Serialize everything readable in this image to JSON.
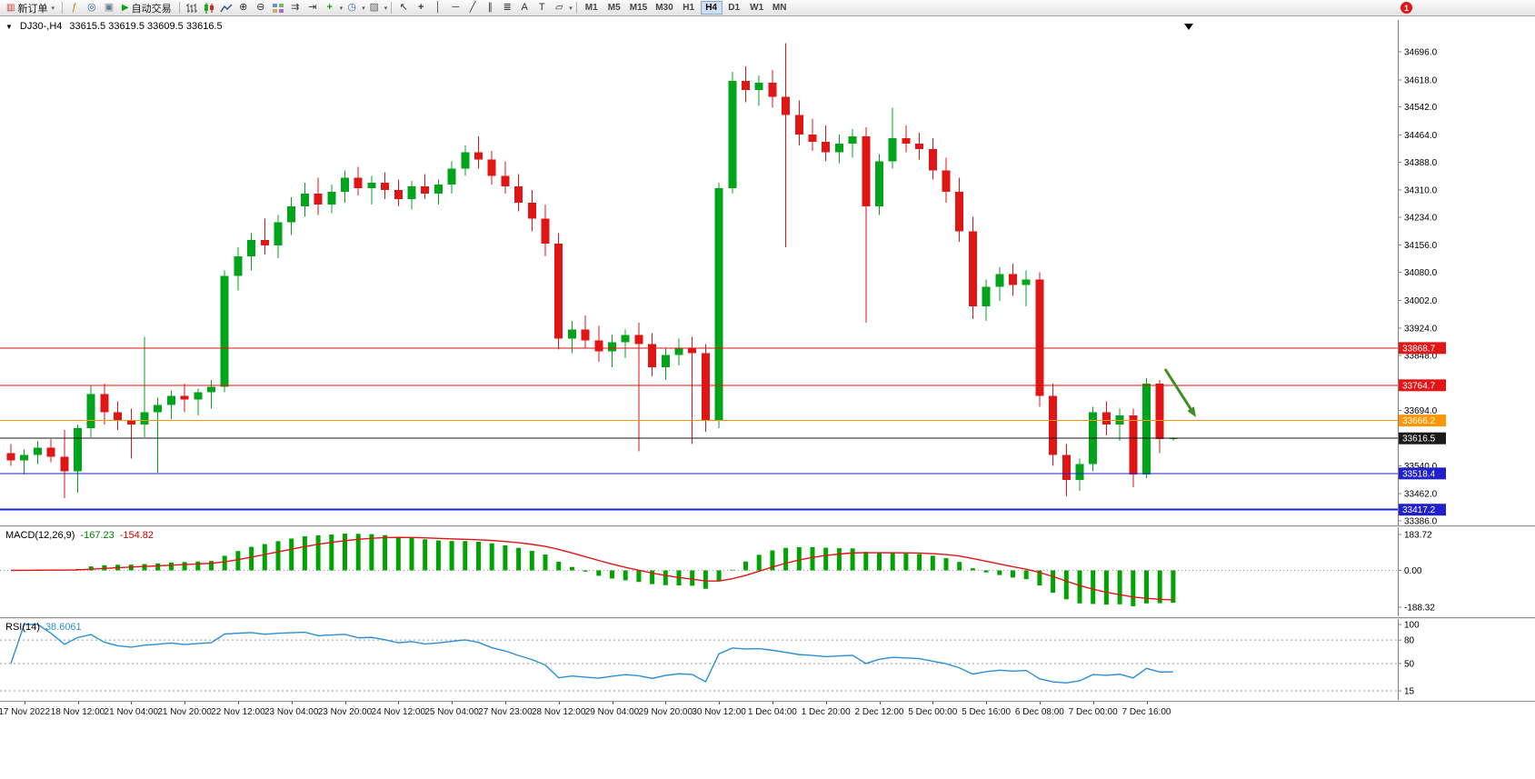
{
  "toolbar": {
    "items": [
      {
        "t": "btn",
        "name": "new-order-button",
        "icon": "new-order-icon",
        "glyph": "▥",
        "color": "#c03a2b",
        "label": "新订单",
        "dd": true
      },
      {
        "t": "sep"
      },
      {
        "t": "ico",
        "name": "indicators-icon",
        "glyph": "ƒ",
        "color": "#b8860b"
      },
      {
        "t": "ico",
        "name": "navigator-icon",
        "glyph": "◎",
        "color": "#3465a4"
      },
      {
        "t": "ico",
        "name": "terminal-icon",
        "glyph": "▣",
        "color": "#6b7b8c"
      },
      {
        "t": "btn",
        "name": "auto-trading-button",
        "icon": "play-icon",
        "glyph": "▶",
        "color": "#12a012",
        "label": "自动交易",
        "dd": false
      },
      {
        "t": "sep"
      },
      {
        "t": "svg",
        "name": "bar-chart-icon",
        "shape": "bars"
      },
      {
        "t": "svg",
        "name": "candlestick-chart-icon",
        "shape": "candles"
      },
      {
        "t": "svg",
        "name": "line-chart-icon",
        "shape": "line"
      },
      {
        "t": "ico",
        "name": "zoom-in-icon",
        "glyph": "⊕",
        "color": "#333333"
      },
      {
        "t": "ico",
        "name": "zoom-out-icon",
        "glyph": "⊖",
        "color": "#333333"
      },
      {
        "t": "svg",
        "name": "tile-windows-icon",
        "shape": "grid"
      },
      {
        "t": "ico",
        "name": "auto-scroll-icon",
        "glyph": "⇉",
        "color": "#333333"
      },
      {
        "t": "ico",
        "name": "chart-shift-icon",
        "glyph": "⇥",
        "color": "#333333"
      },
      {
        "t": "ico",
        "name": "add-indicator-icon",
        "glyph": "+",
        "color": "#12a012",
        "bold": true,
        "dd": true
      },
      {
        "t": "ico",
        "name": "period-icon",
        "glyph": "◷",
        "color": "#3465a4",
        "dd": true
      },
      {
        "t": "ico",
        "name": "templates-icon",
        "glyph": "▨",
        "color": "#666666",
        "dd": true
      },
      {
        "t": "sep"
      },
      {
        "t": "ico",
        "name": "cursor-icon",
        "glyph": "↖",
        "color": "#333333"
      },
      {
        "t": "ico",
        "name": "crosshair-icon",
        "glyph": "+",
        "color": "#333333",
        "bold": true
      },
      {
        "t": "ico",
        "name": "vertical-line-icon",
        "glyph": "│",
        "color": "#333333"
      },
      {
        "t": "ico",
        "name": "horizontal-line-icon",
        "glyph": "─",
        "color": "#333333"
      },
      {
        "t": "ico",
        "name": "trendline-icon",
        "glyph": "╱",
        "color": "#333333"
      },
      {
        "t": "ico",
        "name": "channel-icon",
        "glyph": "∥",
        "color": "#333333"
      },
      {
        "t": "ico",
        "name": "fibonacci-icon",
        "glyph": "≣",
        "color": "#333333"
      },
      {
        "t": "ico",
        "name": "text-icon",
        "glyph": "A",
        "color": "#333333"
      },
      {
        "t": "ico",
        "name": "text-label-icon",
        "glyph": "T",
        "color": "#333333"
      },
      {
        "t": "ico",
        "name": "shapes-icon",
        "glyph": "▱",
        "color": "#333333",
        "dd": true
      },
      {
        "t": "sep"
      },
      {
        "t": "tfs"
      },
      {
        "t": "spacer"
      },
      {
        "t": "badge",
        "name": "notification-badge",
        "label": "1",
        "color": "#e01616"
      }
    ],
    "timeframes": [
      "M1",
      "M5",
      "M15",
      "M30",
      "H1",
      "H4",
      "D1",
      "W1",
      "MN"
    ],
    "active_timeframe": "H4"
  },
  "chart": {
    "symbol_period": "DJ30-,H4",
    "ohlc_text": "33615.5 33619.5 33609.5 33616.5",
    "price_axis": [
      "34696.0",
      "34618.0",
      "34542.0",
      "34464.0",
      "34388.0",
      "34310.0",
      "34234.0",
      "34156.0",
      "34080.0",
      "34002.0",
      "33924.0",
      "33848.0",
      "33772.0",
      "33694.0",
      "33618.0",
      "33540.0",
      "33462.0",
      "33386.0"
    ],
    "hlines": [
      {
        "label": "33868.7",
        "price": 33868.7,
        "color": "#e01616",
        "w": 1
      },
      {
        "label": "33764.7",
        "price": 33764.7,
        "color": "#e01616",
        "w": 1
      },
      {
        "label": "33666.2",
        "price": 33666.2,
        "color": "#ff9500",
        "w": 1
      },
      {
        "label": "33616.5",
        "price": 33616.5,
        "color": "#1a1a1a",
        "w": 1
      },
      {
        "label": "33518.4",
        "price": 33518.4,
        "color": "#2020cc",
        "w": 1
      },
      {
        "label": "33417.2",
        "price": 33417.2,
        "color": "#2020cc",
        "w": 2
      }
    ],
    "annotations": [
      {
        "type": "arrow",
        "from": [
          1282,
          384
        ],
        "to": [
          1316,
          437
        ],
        "color": "#3e8e22"
      }
    ],
    "time_axis": [
      "17 Nov 2022",
      "18 Nov 12:00",
      "21 Nov 04:00",
      "21 Nov 20:00",
      "22 Nov 12:00",
      "23 Nov 04:00",
      "23 Nov 20:00",
      "24 Nov 12:00",
      "25 Nov 04:00",
      "27 Nov 23:00",
      "28 Nov 12:00",
      "29 Nov 04:00",
      "29 Nov 20:00",
      "30 Nov 12:00",
      "1 Dec 04:00",
      "1 Dec 20:00",
      "2 Dec 12:00",
      "5 Dec 00:00",
      "5 Dec 16:00",
      "6 Dec 08:00",
      "7 Dec 00:00",
      "7 Dec 16:00"
    ],
    "colors": {
      "bull": "#00a41a",
      "bear": "#e01616",
      "background": "#ffffff",
      "axis": "#808080",
      "macd_histogram": "#00a400",
      "macd_signal": "#e01616",
      "rsi_line": "#2a8fd8"
    }
  },
  "macd_panel": {
    "label": "MACD(12,26,9)",
    "value_macd": "-167.23",
    "value_signal": "-154.82",
    "scale": [
      "183.72",
      "0.00",
      "-188.32"
    ]
  },
  "rsi_panel": {
    "label": "RSI(14)",
    "value": "38.6061",
    "scale": [
      "100",
      "80",
      "50",
      "15"
    ],
    "levels": [
      80,
      50,
      15
    ]
  },
  "chart_data": {
    "type": "candlestick",
    "symbol": "DJ30-",
    "timeframe": "H4",
    "title": "DJ30-,H4",
    "current_ohlc": {
      "open": 33615.5,
      "high": 33619.5,
      "low": 33609.5,
      "close": 33616.5
    },
    "ylim": [
      33376,
      34785
    ],
    "horizontal_lines": [
      33868.7,
      33764.7,
      33666.2,
      33616.5,
      33518.4,
      33417.2
    ],
    "time_labels_first_index": 1,
    "time_labels_step": 4,
    "indicators": [
      {
        "type": "MACD",
        "params": [
          12,
          26,
          9
        ],
        "last_macd": -167.23,
        "last_signal": -154.82,
        "scale_max": 183.72,
        "scale_min": -188.32
      },
      {
        "type": "RSI",
        "params": [
          14
        ],
        "last_value": 38.6061,
        "levels": [
          80,
          50,
          15
        ]
      }
    ],
    "candles": [
      [
        33575,
        33600,
        33540,
        33555
      ],
      [
        33555,
        33585,
        33515,
        33570
      ],
      [
        33570,
        33610,
        33545,
        33590
      ],
      [
        33590,
        33615,
        33550,
        33565
      ],
      [
        33565,
        33640,
        33450,
        33525
      ],
      [
        33525,
        33655,
        33465,
        33645
      ],
      [
        33645,
        33765,
        33620,
        33740
      ],
      [
        33740,
        33770,
        33655,
        33690
      ],
      [
        33690,
        33720,
        33640,
        33665
      ],
      [
        33665,
        33700,
        33560,
        33655
      ],
      [
        33655,
        33900,
        33620,
        33690
      ],
      [
        33690,
        33730,
        33520,
        33710
      ],
      [
        33710,
        33750,
        33670,
        33735
      ],
      [
        33735,
        33770,
        33690,
        33725
      ],
      [
        33725,
        33755,
        33680,
        33745
      ],
      [
        33745,
        33780,
        33700,
        33760
      ],
      [
        33760,
        34085,
        33745,
        34070
      ],
      [
        34070,
        34150,
        34030,
        34125
      ],
      [
        34125,
        34190,
        34085,
        34170
      ],
      [
        34170,
        34230,
        34130,
        34155
      ],
      [
        34155,
        34240,
        34120,
        34220
      ],
      [
        34220,
        34290,
        34185,
        34265
      ],
      [
        34265,
        34330,
        34235,
        34300
      ],
      [
        34300,
        34345,
        34240,
        34270
      ],
      [
        34270,
        34325,
        34245,
        34305
      ],
      [
        34305,
        34365,
        34275,
        34345
      ],
      [
        34345,
        34375,
        34295,
        34315
      ],
      [
        34315,
        34350,
        34270,
        34330
      ],
      [
        34330,
        34360,
        34285,
        34310
      ],
      [
        34310,
        34340,
        34265,
        34285
      ],
      [
        34285,
        34335,
        34255,
        34320
      ],
      [
        34320,
        34355,
        34285,
        34300
      ],
      [
        34300,
        34340,
        34270,
        34325
      ],
      [
        34325,
        34390,
        34300,
        34370
      ],
      [
        34370,
        34435,
        34350,
        34415
      ],
      [
        34415,
        34460,
        34370,
        34395
      ],
      [
        34395,
        34420,
        34325,
        34350
      ],
      [
        34350,
        34390,
        34300,
        34320
      ],
      [
        34320,
        34355,
        34250,
        34275
      ],
      [
        34275,
        34310,
        34195,
        34230
      ],
      [
        34230,
        34270,
        34125,
        34160
      ],
      [
        34160,
        34190,
        33865,
        33895
      ],
      [
        33895,
        33945,
        33855,
        33920
      ],
      [
        33920,
        33960,
        33870,
        33890
      ],
      [
        33890,
        33930,
        33830,
        33860
      ],
      [
        33860,
        33905,
        33815,
        33885
      ],
      [
        33885,
        33920,
        33840,
        33905
      ],
      [
        33905,
        33940,
        33580,
        33880
      ],
      [
        33880,
        33910,
        33790,
        33815
      ],
      [
        33815,
        33870,
        33780,
        33850
      ],
      [
        33850,
        33895,
        33820,
        33870
      ],
      [
        33870,
        33900,
        33600,
        33855
      ],
      [
        33855,
        33880,
        33635,
        33665
      ],
      [
        33665,
        34330,
        33645,
        34315
      ],
      [
        34315,
        34640,
        34300,
        34615
      ],
      [
        34615,
        34655,
        34555,
        34590
      ],
      [
        34590,
        34630,
        34545,
        34610
      ],
      [
        34610,
        34645,
        34540,
        34570
      ],
      [
        34570,
        34720,
        34150,
        34520
      ],
      [
        34520,
        34560,
        34435,
        34465
      ],
      [
        34465,
        34510,
        34420,
        34445
      ],
      [
        34445,
        34490,
        34390,
        34415
      ],
      [
        34415,
        34465,
        34385,
        34440
      ],
      [
        34440,
        34480,
        34400,
        34460
      ],
      [
        34460,
        34485,
        33940,
        34265
      ],
      [
        34265,
        34410,
        34240,
        34390
      ],
      [
        34390,
        34540,
        34370,
        34455
      ],
      [
        34455,
        34490,
        34415,
        34440
      ],
      [
        34440,
        34470,
        34395,
        34425
      ],
      [
        34425,
        34455,
        34340,
        34365
      ],
      [
        34365,
        34400,
        34275,
        34305
      ],
      [
        34305,
        34345,
        34165,
        34195
      ],
      [
        34195,
        34235,
        33950,
        33985
      ],
      [
        33985,
        34060,
        33945,
        34040
      ],
      [
        34040,
        34095,
        34000,
        34075
      ],
      [
        34075,
        34105,
        34015,
        34045
      ],
      [
        34045,
        34085,
        33985,
        34060
      ],
      [
        34060,
        34080,
        33705,
        33735
      ],
      [
        33735,
        33770,
        33540,
        33570
      ],
      [
        33570,
        33600,
        33455,
        33500
      ],
      [
        33500,
        33560,
        33470,
        33545
      ],
      [
        33545,
        33705,
        33525,
        33690
      ],
      [
        33690,
        33720,
        33625,
        33655
      ],
      [
        33655,
        33700,
        33610,
        33680
      ],
      [
        33680,
        33700,
        33480,
        33515
      ],
      [
        33515,
        33785,
        33505,
        33770
      ],
      [
        33770,
        33780,
        33575,
        33615
      ],
      [
        33615.5,
        33619.5,
        33609.5,
        33616.5
      ]
    ]
  }
}
